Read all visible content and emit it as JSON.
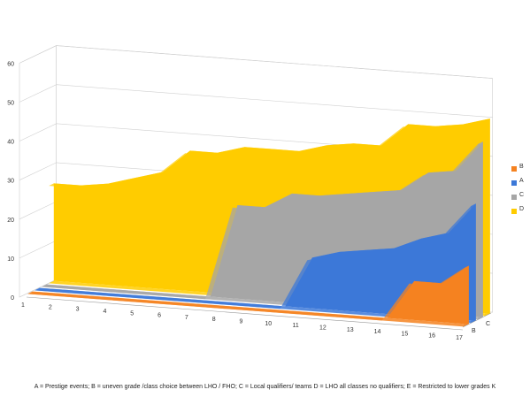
{
  "chart_data": {
    "type": "area",
    "categories": [
      "1",
      "2",
      "3",
      "4",
      "5",
      "6",
      "7",
      "8",
      "9",
      "10",
      "11",
      "12",
      "13",
      "14",
      "15",
      "16",
      "17"
    ],
    "ylim": [
      0,
      60
    ],
    "yticks": [
      "0",
      "10",
      "20",
      "30",
      "40",
      "50",
      "60"
    ],
    "depth_labels": [
      "B",
      "A",
      "C",
      "D"
    ],
    "series": [
      {
        "name": "B",
        "color": "#f58220",
        "values": [
          0,
          0,
          0,
          0,
          0,
          0,
          0,
          0,
          0,
          0,
          0,
          0,
          0,
          0,
          10,
          10,
          15
        ]
      },
      {
        "name": "A",
        "color": "#3c78d8",
        "values": [
          0,
          0,
          0,
          0,
          0,
          0,
          0,
          0,
          0,
          0,
          13,
          15,
          16,
          17,
          20,
          22,
          30
        ]
      },
      {
        "name": "C",
        "color": "#a6a6a6",
        "values": [
          0,
          0,
          0,
          0,
          0,
          0,
          0,
          24,
          24,
          28,
          28,
          29,
          30,
          31,
          36,
          37,
          45
        ]
      },
      {
        "name": "D",
        "color": "#ffcc00",
        "values": [
          25,
          25,
          26,
          28,
          30,
          36,
          36,
          38,
          38,
          38,
          40,
          41,
          41,
          47,
          47,
          48,
          50
        ]
      }
    ],
    "legend_position": "right",
    "grid": true
  },
  "footnote": "A = Prestige events; B = uneven grade /class choice between LHO / FHO; C = Local qualifiers/ teams D = LHO all classes no qualifiers; E = Restricted to lower grades K"
}
